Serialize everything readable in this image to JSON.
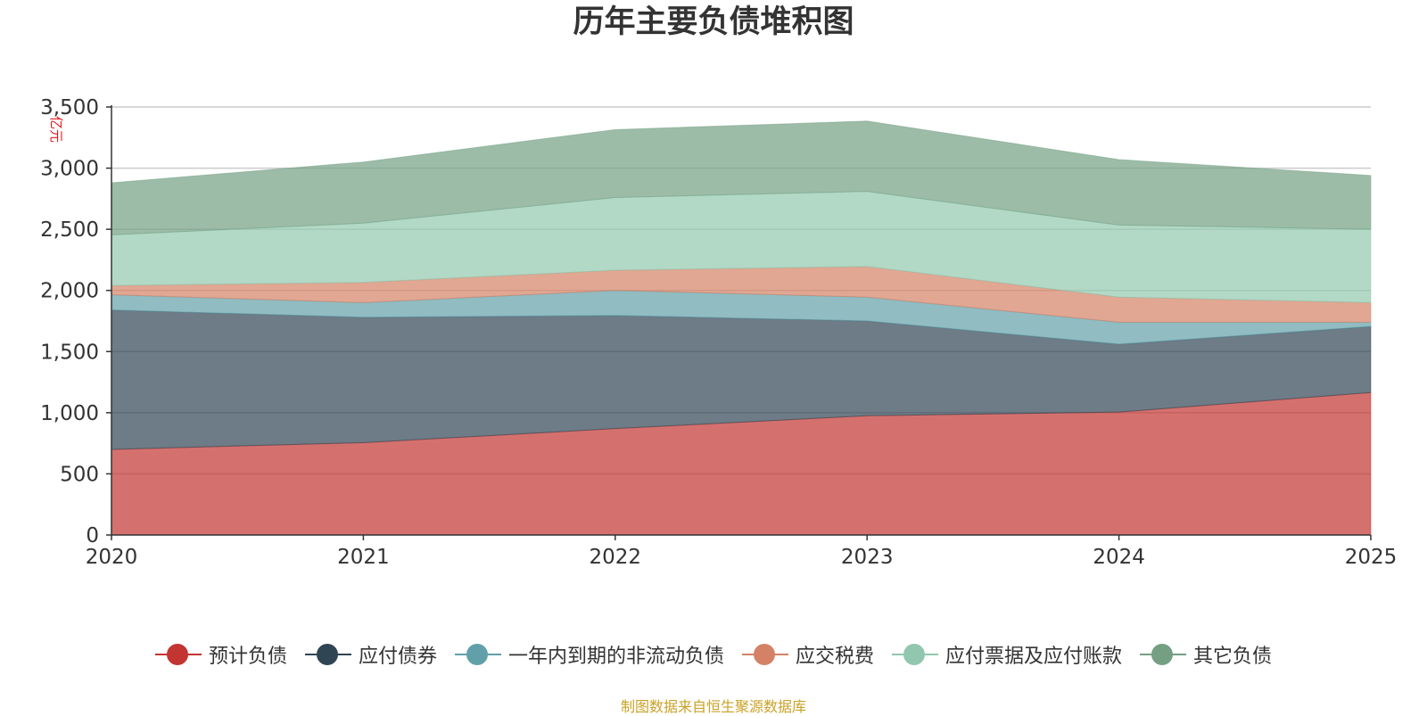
{
  "chart_data": {
    "type": "area",
    "stacked": true,
    "title": "历年主要负债堆积图",
    "ylabel": "亿元",
    "xlabel": "",
    "ylim": [
      0,
      3500
    ],
    "yticks": [
      0,
      500,
      1000,
      1500,
      2000,
      2500,
      3000,
      3500
    ],
    "ytick_labels": [
      "0",
      "500",
      "1,000",
      "1,500",
      "2,000",
      "2,500",
      "3,000",
      "3,500"
    ],
    "categories": [
      "2020",
      "2021",
      "2022",
      "2023",
      "2024",
      "2025"
    ],
    "grid": true,
    "legend_position": "bottom",
    "series": [
      {
        "name": "预计负债",
        "color": "#c23531",
        "values": [
          700,
          755,
          870,
          975,
          1005,
          1165
        ]
      },
      {
        "name": "应付债券",
        "color": "#2f4554",
        "values": [
          1140,
          1025,
          925,
          775,
          555,
          540
        ]
      },
      {
        "name": "一年内到期的非流动负债",
        "color": "#61a0a8",
        "values": [
          125,
          120,
          205,
          195,
          180,
          35
        ]
      },
      {
        "name": "应交税费",
        "color": "#d48265",
        "values": [
          75,
          165,
          165,
          250,
          205,
          160
        ]
      },
      {
        "name": "应付票据及应付账款",
        "color": "#91c7ae",
        "values": [
          415,
          485,
          595,
          615,
          590,
          600
        ]
      },
      {
        "name": "其它负债",
        "color": "#749f83",
        "values": [
          425,
          500,
          555,
          575,
          535,
          440
        ]
      }
    ],
    "source": "制图数据来自恒生聚源数据库"
  }
}
